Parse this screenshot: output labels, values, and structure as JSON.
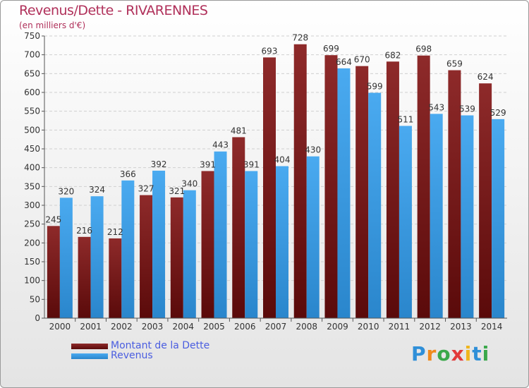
{
  "header": {
    "title": "Revenus/Dette - RIVARENNES",
    "subtitle": "(en milliers d'€)"
  },
  "legend": {
    "items": [
      {
        "label": "Montant de la Dette",
        "color": "#7a1414"
      },
      {
        "label": "Revenus",
        "color": "#3a9ee8"
      }
    ]
  },
  "logo": {
    "letters": [
      "P",
      "r",
      "o",
      "x",
      "i",
      "t",
      "i"
    ]
  },
  "chart_data": {
    "type": "bar",
    "title": "Revenus/Dette - RIVARENNES",
    "subtitle": "(en milliers d'€)",
    "categories": [
      "2000",
      "2001",
      "2002",
      "2003",
      "2004",
      "2005",
      "2006",
      "2007",
      "2008",
      "2009",
      "2010",
      "2011",
      "2012",
      "2013",
      "2014"
    ],
    "series": [
      {
        "name": "Montant de la Dette",
        "color": "#7a1414",
        "values": [
          245,
          216,
          212,
          327,
          321,
          391,
          481,
          693,
          728,
          699,
          670,
          682,
          698,
          659,
          624
        ]
      },
      {
        "name": "Revenus",
        "color": "#3a9ee8",
        "values": [
          320,
          324,
          366,
          392,
          340,
          443,
          391,
          404,
          430,
          664,
          599,
          511,
          543,
          539,
          529
        ]
      }
    ],
    "ylim": [
      0,
      750
    ],
    "yticks": [
      0,
      50,
      100,
      150,
      200,
      250,
      300,
      350,
      400,
      450,
      500,
      550,
      600,
      650,
      700,
      750
    ],
    "grid": true,
    "legend_position": "bottom-left"
  }
}
